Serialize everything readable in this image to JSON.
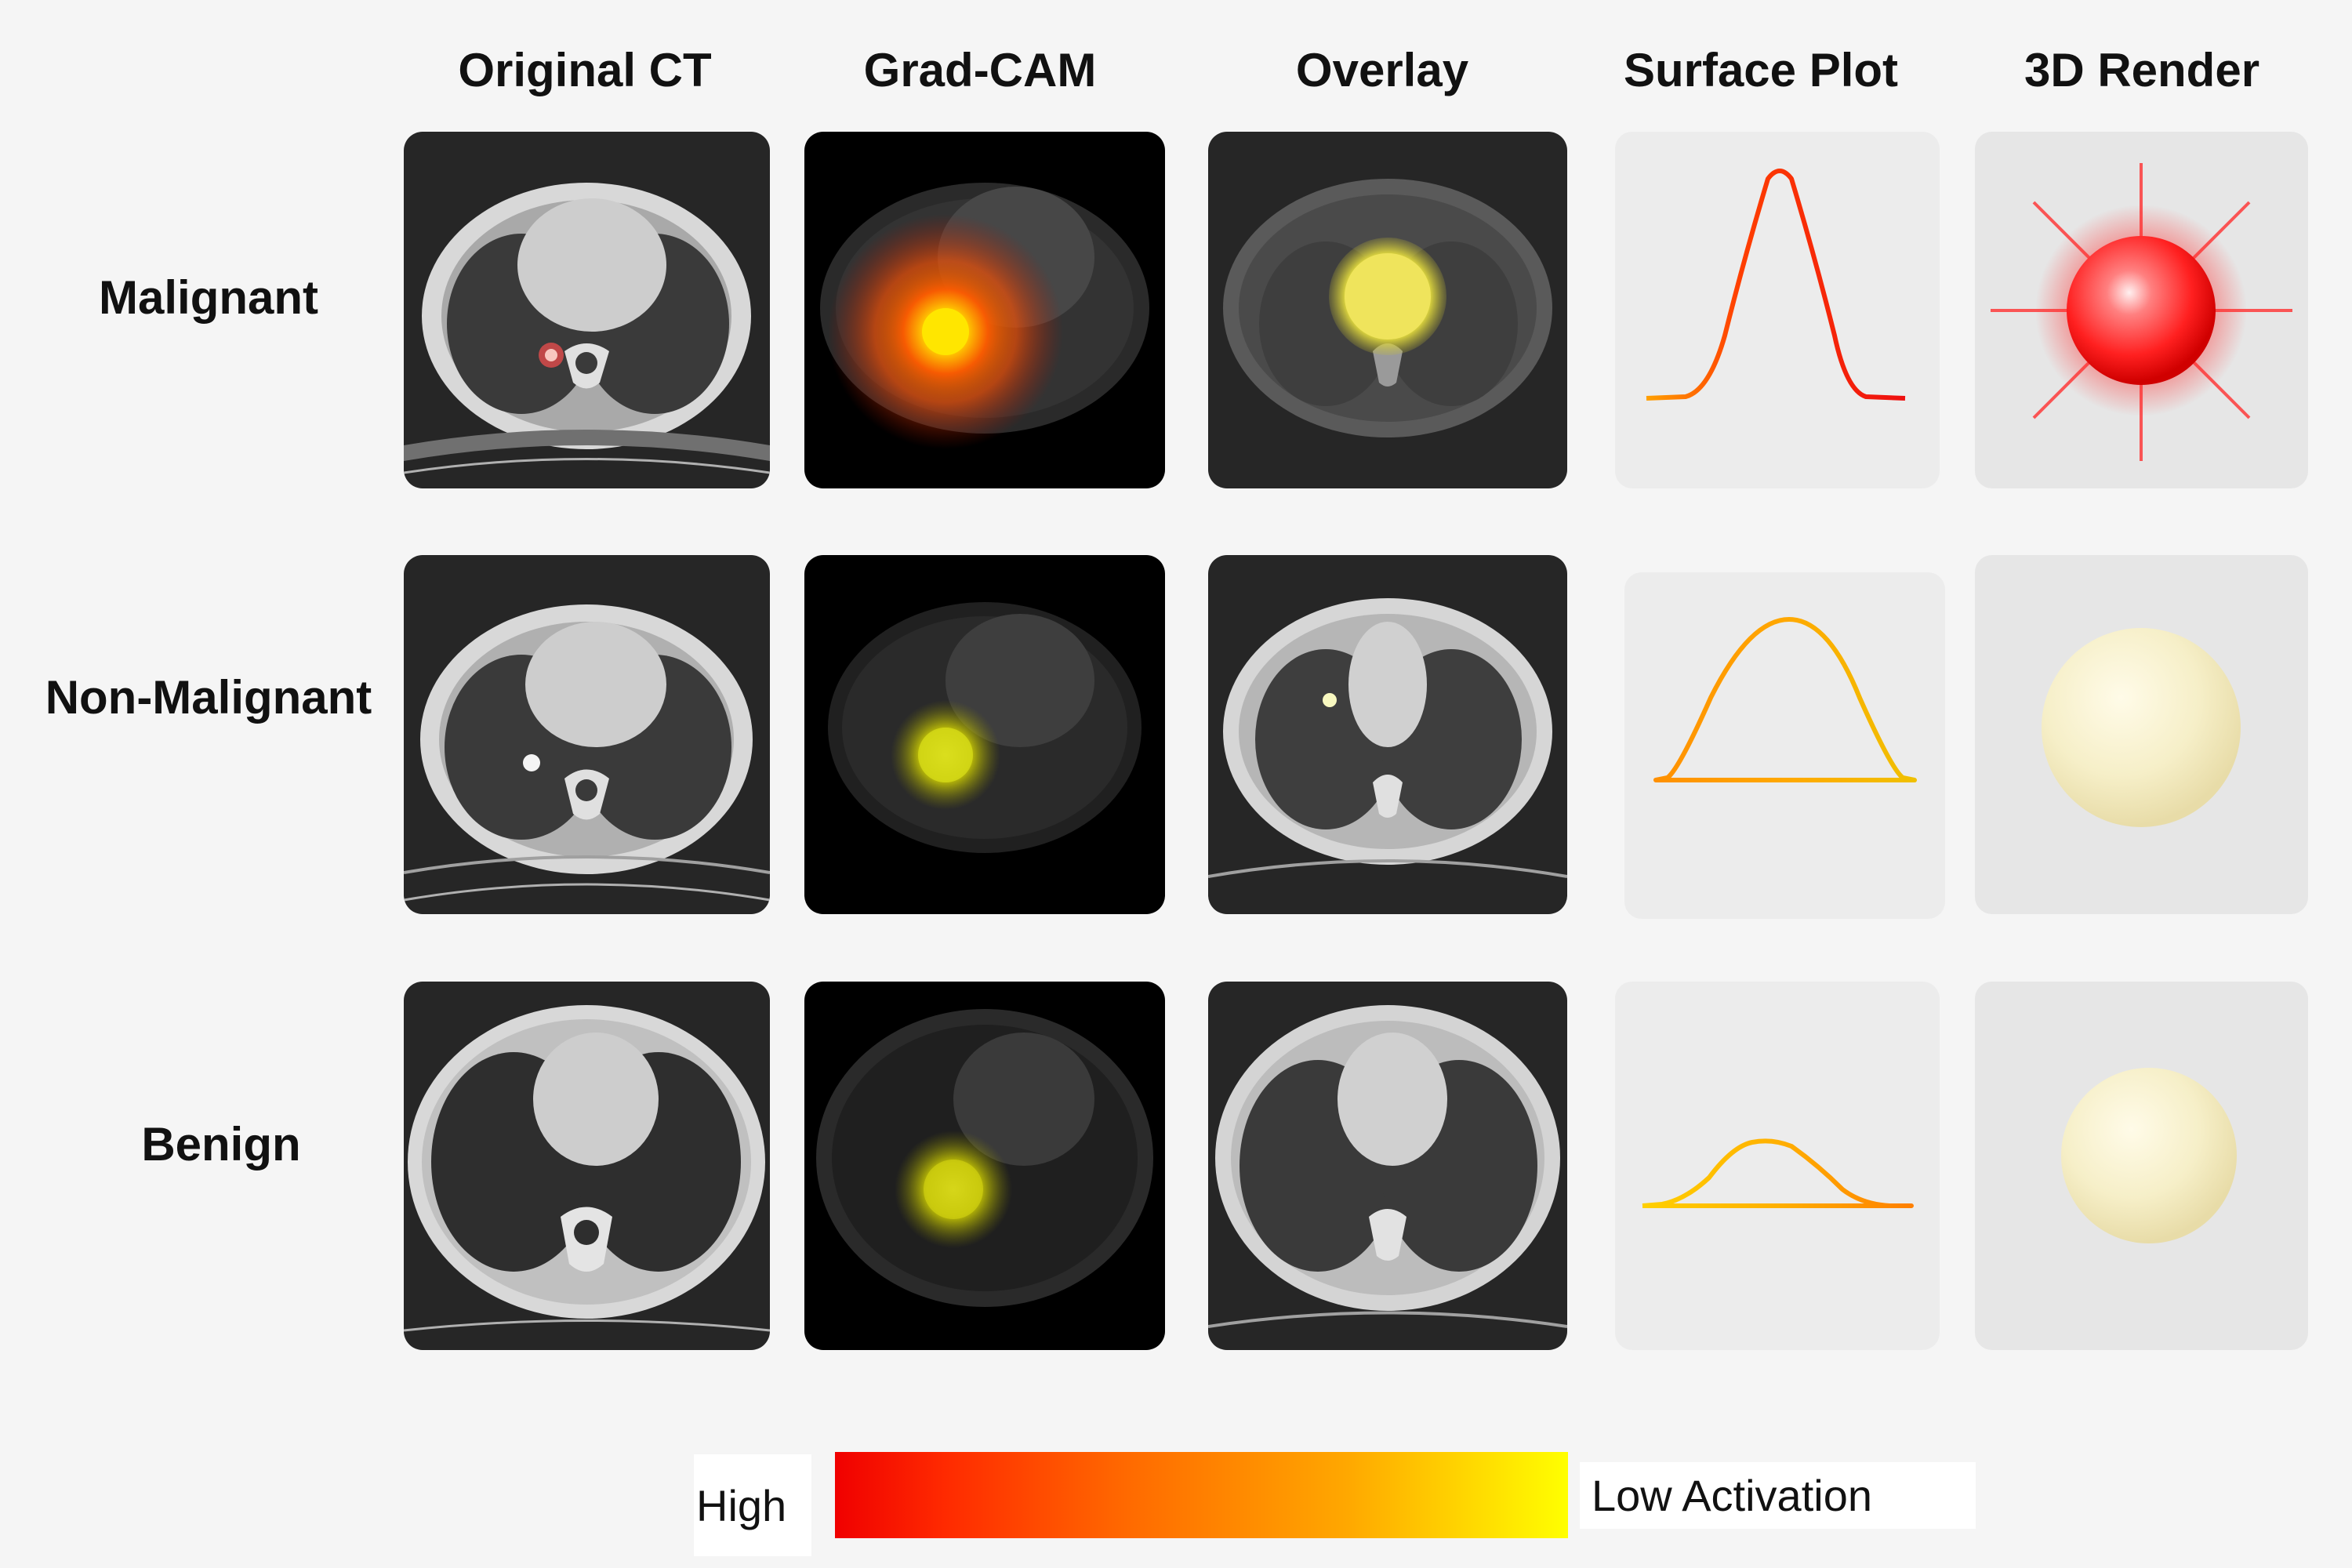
{
  "columns": [
    "Original CT",
    "Grad-CAM",
    "Overlay",
    "Surface Plot",
    "3D Render"
  ],
  "rows": [
    {
      "label": "Malignant",
      "activation": "high",
      "color": "#ff2020"
    },
    {
      "label": "Non-Malignant",
      "activation": "medium",
      "color": "#f0c000"
    },
    {
      "label": "Benign",
      "activation": "low",
      "color": "#f0d000"
    }
  ],
  "legend": {
    "high_label": "High",
    "low_label": "Low Activation",
    "gradient_colors": [
      "#f00000",
      "#ff6a00",
      "#ffa800",
      "#ffff00"
    ]
  }
}
